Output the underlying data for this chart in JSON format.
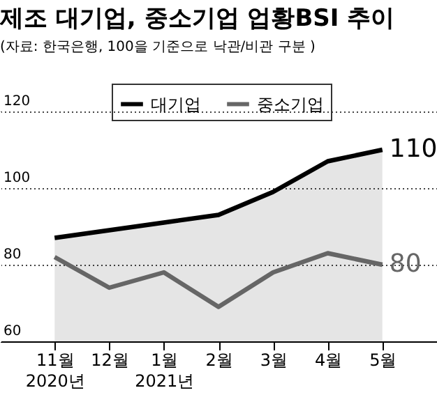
{
  "chart_data": {
    "type": "line",
    "title": "제조 대기업, 중소기업 업황BSI 추이",
    "subtitle": "(자료: 한국은행, 100을 기준으로 낙관/비관 구분 )",
    "categories": [
      "11월\n2020년",
      "12월",
      "1월\n2021년",
      "2월",
      "3월",
      "4월",
      "5월"
    ],
    "series": [
      {
        "name": "대기업",
        "type": "area",
        "color": "#000000",
        "values": [
          87,
          89,
          91,
          93,
          99,
          107,
          110
        ],
        "value_labels": [
          null,
          null,
          null,
          null,
          null,
          null,
          "110"
        ]
      },
      {
        "name": "중소기업",
        "color": "#666666",
        "values": [
          82,
          74,
          78,
          69,
          78,
          83,
          80
        ],
        "value_labels": [
          null,
          null,
          null,
          null,
          null,
          null,
          "80"
        ]
      }
    ],
    "ylim": [
      60,
      120
    ],
    "yticks": [
      60,
      80,
      100,
      120
    ],
    "grid": "y",
    "legend": "top"
  }
}
